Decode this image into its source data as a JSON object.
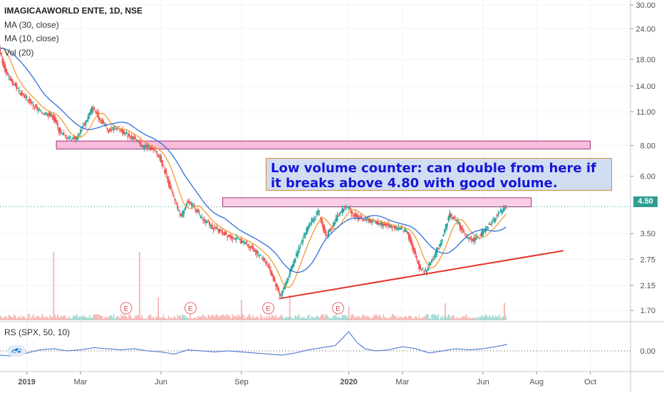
{
  "chart_data": {
    "type": "candlestick",
    "symbol": "IMAGICAAWORLD ENTE",
    "interval": "1D",
    "exchange": "NSE",
    "title_line": "IMAGICAAWORLD ENTE, 1D, NSE",
    "indicators": [
      "MA (30, close)",
      "MA (10, close)",
      "Vol (20)"
    ],
    "rs_indicator": "RS (SPX, 50, 10)",
    "y_scale": "log",
    "y_ticks": [
      "30.00",
      "24.00",
      "18.00",
      "14.00",
      "11.00",
      "8.00",
      "6.00",
      "3.50",
      "2.75",
      "2.15",
      "1.70"
    ],
    "y_tick_values": [
      30,
      24,
      18,
      14,
      11,
      8,
      6,
      3.5,
      2.75,
      2.15,
      1.7
    ],
    "ylim": [
      1.55,
      31
    ],
    "x_labels": [
      "2019",
      "Mar",
      "Jun",
      "Sep",
      "2020",
      "Mar",
      "Jun",
      "Aug",
      "Oct"
    ],
    "x_label_months": [
      0,
      2,
      5,
      8,
      12,
      14,
      17,
      19,
      21
    ],
    "xlim_months": [
      -1.0,
      22.5
    ],
    "bold_x_labels": [
      "2019",
      "2020"
    ],
    "last_price": "4.50",
    "last_price_value": 4.5,
    "price_path": [
      [
        -1.0,
        20.0
      ],
      [
        -0.7,
        15.5
      ],
      [
        -0.5,
        14.5
      ],
      [
        -0.2,
        13.2
      ],
      [
        0.2,
        12.0
      ],
      [
        0.5,
        11.0
      ],
      [
        0.8,
        10.8
      ],
      [
        1.0,
        10.6
      ],
      [
        1.3,
        9.0
      ],
      [
        1.6,
        8.6
      ],
      [
        1.9,
        8.6
      ],
      [
        2.2,
        9.8
      ],
      [
        2.5,
        11.5
      ],
      [
        2.8,
        10.2
      ],
      [
        3.1,
        9.2
      ],
      [
        3.4,
        9.5
      ],
      [
        3.7,
        9.0
      ],
      [
        4.0,
        8.6
      ],
      [
        4.3,
        8.0
      ],
      [
        4.6,
        7.9
      ],
      [
        5.0,
        7.2
      ],
      [
        5.3,
        5.8
      ],
      [
        5.6,
        4.6
      ],
      [
        5.8,
        4.1
      ],
      [
        6.0,
        4.7
      ],
      [
        6.3,
        4.5
      ],
      [
        6.6,
        4.0
      ],
      [
        7.0,
        3.7
      ],
      [
        7.4,
        3.5
      ],
      [
        7.8,
        3.35
      ],
      [
        8.2,
        3.2
      ],
      [
        8.6,
        2.95
      ],
      [
        9.0,
        2.65
      ],
      [
        9.3,
        2.2
      ],
      [
        9.5,
        1.95
      ],
      [
        9.7,
        2.2
      ],
      [
        10.0,
        2.7
      ],
      [
        10.3,
        3.3
      ],
      [
        10.6,
        3.9
      ],
      [
        10.9,
        4.3
      ],
      [
        11.2,
        3.4
      ],
      [
        11.5,
        3.9
      ],
      [
        11.8,
        4.4
      ],
      [
        12.0,
        4.5
      ],
      [
        12.3,
        4.1
      ],
      [
        12.6,
        4.0
      ],
      [
        13.0,
        3.9
      ],
      [
        13.4,
        3.8
      ],
      [
        13.8,
        3.7
      ],
      [
        14.2,
        3.6
      ],
      [
        14.5,
        2.9
      ],
      [
        14.7,
        2.5
      ],
      [
        14.9,
        2.45
      ],
      [
        15.2,
        2.8
      ],
      [
        15.5,
        3.3
      ],
      [
        15.8,
        4.2
      ],
      [
        16.1,
        3.9
      ],
      [
        16.4,
        3.4
      ],
      [
        16.7,
        3.3
      ],
      [
        17.0,
        3.5
      ],
      [
        17.3,
        3.8
      ],
      [
        17.6,
        4.2
      ],
      [
        17.9,
        4.5
      ]
    ],
    "volume_spikes": [
      {
        "x": 1.0,
        "v": 0.24
      },
      {
        "x": 4.2,
        "v": 0.24
      },
      {
        "x": 4.9,
        "v": 0.08
      },
      {
        "x": 8.0,
        "v": 0.07
      },
      {
        "x": 9.8,
        "v": 0.09
      },
      {
        "x": 12.0,
        "v": 0.05
      },
      {
        "x": 15.6,
        "v": 0.06
      },
      {
        "x": 17.8,
        "v": 0.06
      }
    ],
    "earnings_markers": [
      {
        "label": "E",
        "x": 3.7
      },
      {
        "label": "E",
        "x": 6.1
      },
      {
        "label": "E",
        "x": 9.0
      },
      {
        "label": "E",
        "x": 11.6
      }
    ],
    "resistance_zone": {
      "x_start": 1.1,
      "x_end": 21.0,
      "price_low": 7.75,
      "price_high": 8.35
    },
    "breakout_zone": {
      "x_start": 7.3,
      "x_end": 18.8,
      "price_low": 4.5,
      "price_high": 4.9
    },
    "trendline": {
      "x1": 9.4,
      "y1": 1.9,
      "x2": 20.0,
      "y2": 2.98
    },
    "rs_tick": "0.00",
    "rs_path": [
      [
        -1.0,
        -0.2
      ],
      [
        -0.5,
        -0.25
      ],
      [
        0.0,
        -0.1
      ],
      [
        0.5,
        0.05
      ],
      [
        1.0,
        0.1
      ],
      [
        1.5,
        0.0
      ],
      [
        2.0,
        0.05
      ],
      [
        2.5,
        0.15
      ],
      [
        3.0,
        0.1
      ],
      [
        3.5,
        0.05
      ],
      [
        4.0,
        0.1
      ],
      [
        4.5,
        0.0
      ],
      [
        5.0,
        -0.05
      ],
      [
        5.5,
        -0.15
      ],
      [
        6.0,
        0.05
      ],
      [
        6.5,
        0.0
      ],
      [
        7.0,
        -0.05
      ],
      [
        7.5,
        0.0
      ],
      [
        8.0,
        -0.05
      ],
      [
        8.5,
        -0.1
      ],
      [
        9.0,
        -0.15
      ],
      [
        9.5,
        -0.2
      ],
      [
        10.0,
        -0.1
      ],
      [
        10.5,
        0.05
      ],
      [
        11.0,
        0.15
      ],
      [
        11.5,
        0.25
      ],
      [
        12.0,
        0.9
      ],
      [
        12.3,
        0.4
      ],
      [
        12.6,
        0.1
      ],
      [
        13.0,
        0.0
      ],
      [
        13.5,
        0.05
      ],
      [
        14.0,
        0.2
      ],
      [
        14.5,
        0.1
      ],
      [
        15.0,
        -0.1
      ],
      [
        15.5,
        0.0
      ],
      [
        16.0,
        0.1
      ],
      [
        16.5,
        0.05
      ],
      [
        17.0,
        0.1
      ],
      [
        17.5,
        0.2
      ],
      [
        17.9,
        0.3
      ]
    ],
    "colors": {
      "up": "#26a69a",
      "down": "#ef5350",
      "ma30": "#2f6fd6",
      "ma10": "#f39c33",
      "zone_fill": "#f4a7cf",
      "zone_border": "#a1307d",
      "trend": "#e5332a",
      "price_badge": "#2e9e8f",
      "rs_line": "#3b6cd0",
      "annotation_text": "#1515d8"
    }
  },
  "annotation": "Low volume counter: can double from here if it breaks above 4.80 with good volume."
}
